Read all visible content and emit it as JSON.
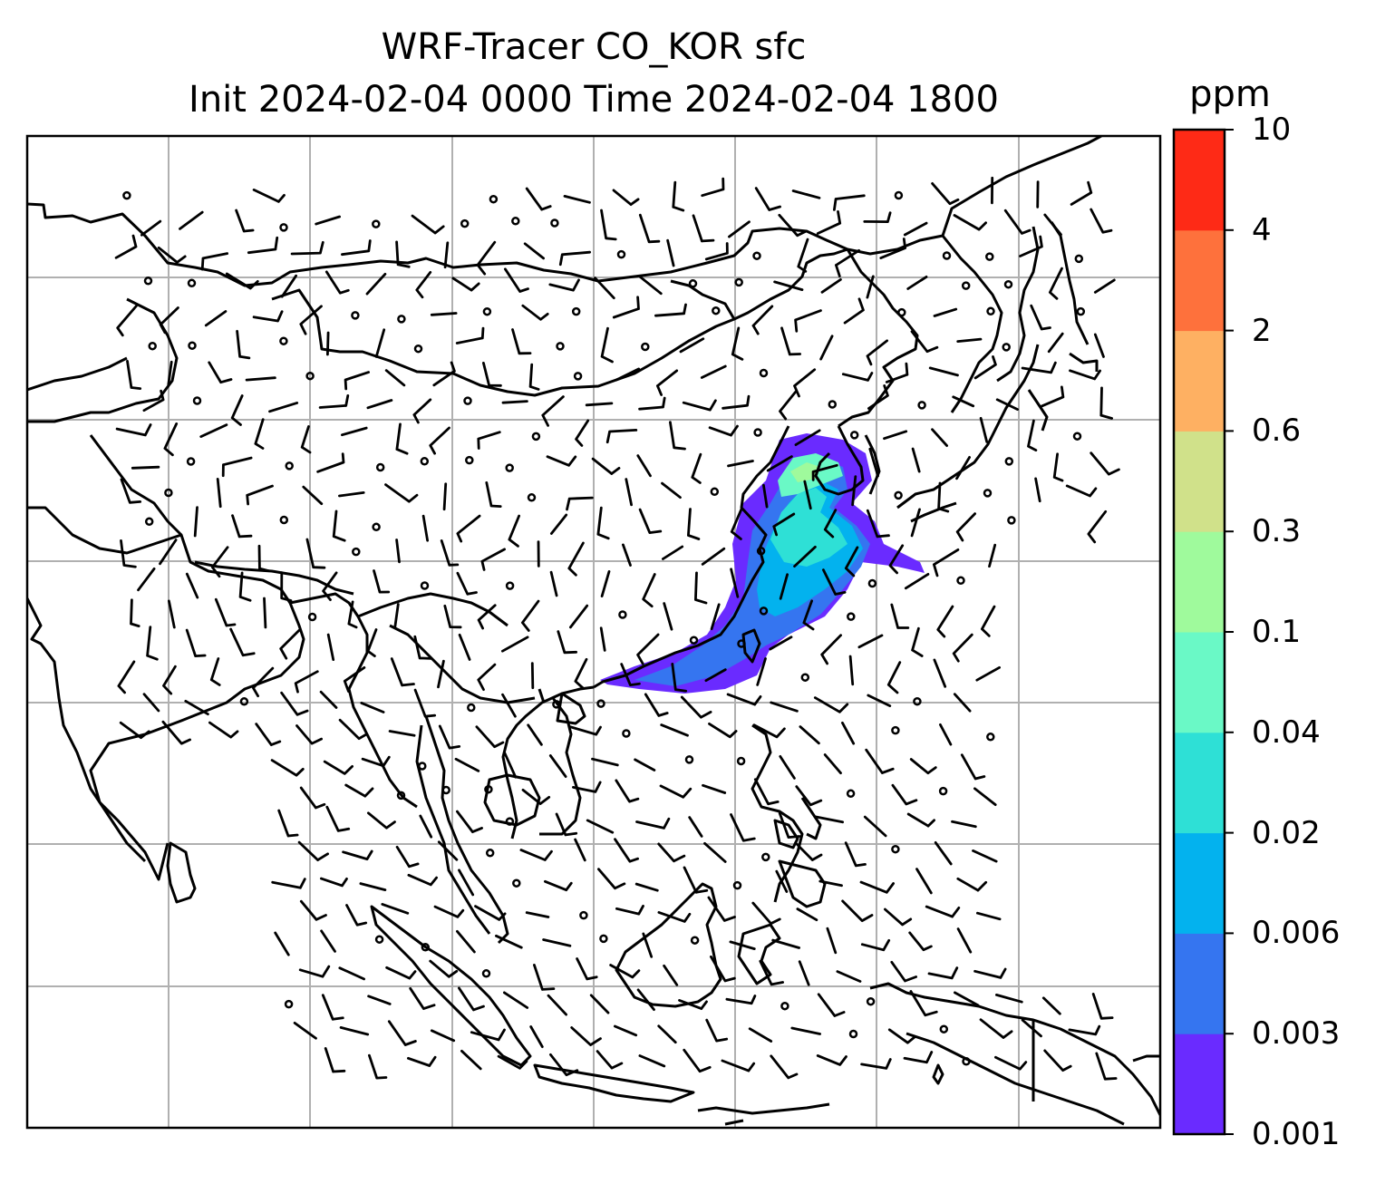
{
  "title_line1": "WRF-Tracer CO_KOR sfc",
  "title_line2": "Init 2024-02-04 0000 Time 2024-02-04 1800",
  "colorbar": {
    "unit": "ppm",
    "levels": [
      "0.001",
      "0.003",
      "0.006",
      "0.02",
      "0.04",
      "0.1",
      "0.3",
      "0.6",
      "2",
      "4",
      "10"
    ],
    "colors": [
      "#6a2bff",
      "#3575f0",
      "#03b2ee",
      "#2ee0d6",
      "#6af9c6",
      "#9ffa9c",
      "#d0e18a",
      "#feb062",
      "#fe713c",
      "#fe2a16"
    ]
  },
  "map": {
    "coastline_color": "#000000",
    "gridline_color": "#b0b0b0",
    "wind_barb_color": "#000000"
  }
}
